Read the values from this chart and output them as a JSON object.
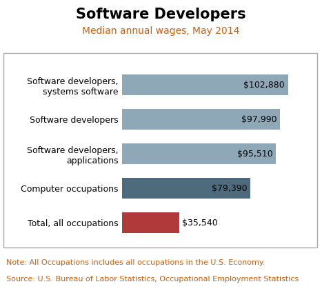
{
  "title": "Software Developers",
  "subtitle": "Median annual wages, May 2014",
  "categories": [
    "Total, all occupations",
    "Computer occupations",
    "Software developers,\napplications",
    "Software developers",
    "Software developers,\nsystems software"
  ],
  "values": [
    35540,
    79390,
    95510,
    97990,
    102880
  ],
  "labels": [
    "$35,540",
    "$79,390",
    "$95,510",
    "$97,990",
    "$102,880"
  ],
  "colors": [
    "#b03a3a",
    "#4d6b7d",
    "#8fa8b8",
    "#8fa8b8",
    "#8fa8b8"
  ],
  "note": "Note: All Occupations includes all occupations in the U.S. Economy.",
  "source": "Source: U.S. Bureau of Labor Statistics, Occupational Employment Statistics",
  "xlim": [
    0,
    115000
  ],
  "title_fontsize": 15,
  "subtitle_fontsize": 10,
  "label_fontsize": 9,
  "cat_fontsize": 9,
  "note_fontsize": 8,
  "bar_height": 0.6,
  "background_color": "#ffffff",
  "plot_bg_color": "#ffffff",
  "subtitle_color": "#c0621a",
  "note_color": "#c0621a",
  "border_color": "#aaaaaa"
}
